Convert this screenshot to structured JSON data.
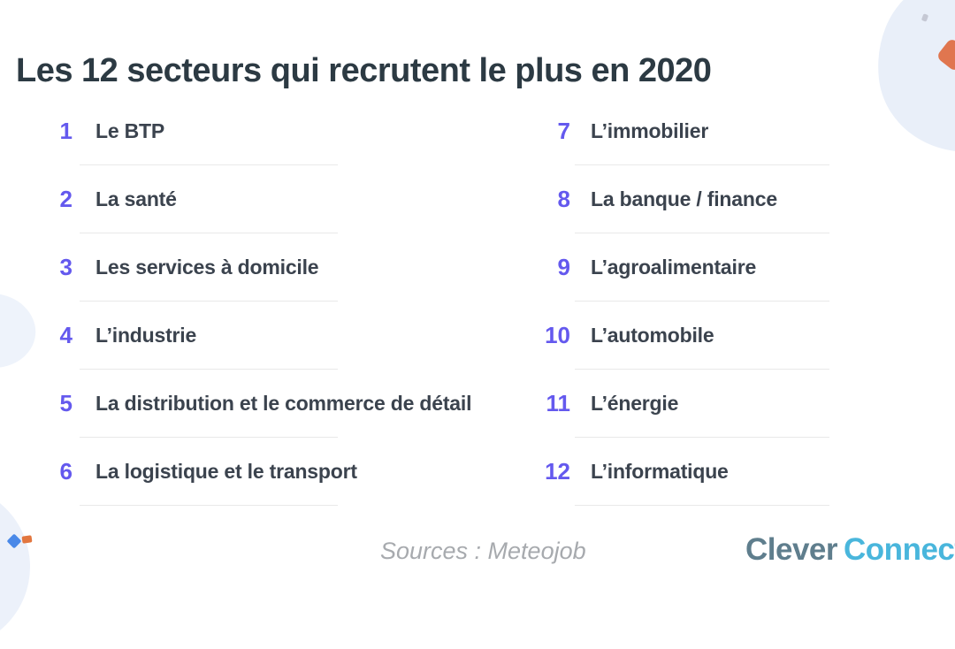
{
  "title": "Les 12 secteurs qui recrutent le plus en 2020",
  "list": {
    "left_column": [
      {
        "rank": "1",
        "label": "Le BTP"
      },
      {
        "rank": "2",
        "label": "La santé"
      },
      {
        "rank": "3",
        "label": "Les services à domicile"
      },
      {
        "rank": "4",
        "label": "L’industrie"
      },
      {
        "rank": "5",
        "label": "La distribution et le commerce de détail"
      },
      {
        "rank": "6",
        "label": "La logistique et le transport"
      }
    ],
    "right_column": [
      {
        "rank": "7",
        "label": "L’immobilier"
      },
      {
        "rank": "8",
        "label": "La banque / finance"
      },
      {
        "rank": "9",
        "label": "L’agroalimentaire"
      },
      {
        "rank": "10",
        "label": "L’automobile"
      },
      {
        "rank": "11",
        "label": "L’énergie"
      },
      {
        "rank": "12",
        "label": "L’informatique"
      }
    ]
  },
  "footer": {
    "sources": "Sources : Meteojob",
    "logo": {
      "part1": "Clever",
      "part2": "Connect"
    }
  },
  "colors": {
    "accent_number": "#6459ee",
    "title_text": "#2c3a43",
    "item_text": "#3b434e",
    "divider": "#e9e9e9",
    "sources_text": "#a7aaae",
    "logo_clever": "#5f7e8d",
    "logo_connect": "#49b6dc",
    "blob_pale_blue": "#e9eff9",
    "shape_orange": "#e0764f",
    "dot_blue": "#4a89e8",
    "dot_orange": "#e2763f"
  }
}
